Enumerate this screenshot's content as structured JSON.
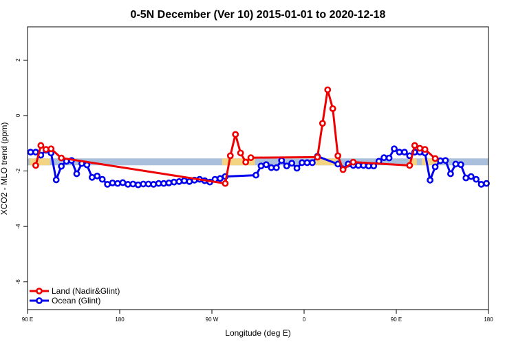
{
  "chart_data": {
    "type": "line",
    "title": "0-5N December (Ver 10)   2015-01-01 to 2020-12-18",
    "xlabel": "Longitude (deg E)",
    "ylabel": "XCO2 - MLO trend (ppm)",
    "xlim": [
      90,
      540
    ],
    "ylim": [
      -7,
      3.2
    ],
    "x_ticks": [
      {
        "value": 90,
        "label": "90 E"
      },
      {
        "value": 180,
        "label": "180"
      },
      {
        "value": 270,
        "label": "90 W"
      },
      {
        "value": 360,
        "label": "0"
      },
      {
        "value": 450,
        "label": "90 E"
      },
      {
        "value": 540,
        "label": "180"
      }
    ],
    "y_ticks": [
      {
        "value": 2,
        "label": "2"
      },
      {
        "value": 0,
        "label": "0"
      },
      {
        "value": -2,
        "label": "-2"
      },
      {
        "value": -4,
        "label": "-4"
      },
      {
        "value": -6,
        "label": "-6"
      }
    ],
    "reference_band": {
      "y": -1.67,
      "color": "#a9bfdc",
      "highlight_color": "#f3d483"
    },
    "highlight_ranges": [
      [
        92,
        112
      ],
      [
        280,
        312
      ],
      [
        370,
        392
      ],
      [
        462,
        470
      ],
      [
        475,
        490
      ]
    ],
    "series": [
      {
        "name": "Land (Nadir&Glint)",
        "color": "#ee0000",
        "points": [
          [
            98,
            -1.8
          ],
          [
            103,
            -1.08
          ],
          [
            108,
            -1.22
          ],
          [
            113,
            -1.2
          ],
          [
            123,
            -1.53
          ],
          [
            283,
            -2.45
          ],
          [
            288,
            -1.45
          ],
          [
            293,
            -0.68
          ],
          [
            298,
            -1.35
          ],
          [
            303,
            -1.68
          ],
          [
            308,
            -1.52
          ],
          [
            373,
            -1.5
          ],
          [
            378,
            -0.28
          ],
          [
            383,
            0.93
          ],
          [
            388,
            0.25
          ],
          [
            393,
            -1.45
          ],
          [
            398,
            -1.95
          ],
          [
            408,
            -1.68
          ],
          [
            463,
            -1.8
          ],
          [
            468,
            -1.08
          ],
          [
            473,
            -1.18
          ],
          [
            478,
            -1.22
          ],
          [
            488,
            -1.55
          ]
        ]
      },
      {
        "name": "Ocean (Glint)",
        "color": "#0000ee",
        "points": [
          [
            93,
            -1.32
          ],
          [
            98,
            -1.32
          ],
          [
            103,
            -1.43
          ],
          [
            108,
            -1.25
          ],
          [
            113,
            -1.35
          ],
          [
            118,
            -2.32
          ],
          [
            123,
            -1.83
          ],
          [
            128,
            -1.65
          ],
          [
            133,
            -1.62
          ],
          [
            138,
            -2.1
          ],
          [
            143,
            -1.73
          ],
          [
            148,
            -1.78
          ],
          [
            153,
            -2.23
          ],
          [
            158,
            -2.18
          ],
          [
            163,
            -2.3
          ],
          [
            168,
            -2.48
          ],
          [
            173,
            -2.43
          ],
          [
            178,
            -2.45
          ],
          [
            183,
            -2.42
          ],
          [
            188,
            -2.48
          ],
          [
            193,
            -2.47
          ],
          [
            198,
            -2.5
          ],
          [
            203,
            -2.47
          ],
          [
            208,
            -2.47
          ],
          [
            213,
            -2.48
          ],
          [
            218,
            -2.45
          ],
          [
            223,
            -2.45
          ],
          [
            228,
            -2.43
          ],
          [
            233,
            -2.4
          ],
          [
            238,
            -2.38
          ],
          [
            243,
            -2.35
          ],
          [
            248,
            -2.38
          ],
          [
            253,
            -2.33
          ],
          [
            258,
            -2.3
          ],
          [
            263,
            -2.35
          ],
          [
            268,
            -2.4
          ],
          [
            273,
            -2.3
          ],
          [
            278,
            -2.27
          ],
          [
            283,
            -2.2
          ],
          [
            313,
            -2.15
          ],
          [
            318,
            -1.82
          ],
          [
            323,
            -1.77
          ],
          [
            328,
            -1.88
          ],
          [
            333,
            -1.88
          ],
          [
            338,
            -1.62
          ],
          [
            343,
            -1.82
          ],
          [
            348,
            -1.72
          ],
          [
            353,
            -1.9
          ],
          [
            358,
            -1.7
          ],
          [
            363,
            -1.7
          ],
          [
            368,
            -1.7
          ],
          [
            373,
            -1.47
          ],
          [
            393,
            -1.75
          ],
          [
            398,
            -1.92
          ],
          [
            403,
            -1.75
          ],
          [
            408,
            -1.8
          ],
          [
            413,
            -1.8
          ],
          [
            418,
            -1.8
          ],
          [
            423,
            -1.82
          ],
          [
            428,
            -1.82
          ],
          [
            433,
            -1.65
          ],
          [
            438,
            -1.52
          ],
          [
            443,
            -1.53
          ],
          [
            448,
            -1.2
          ],
          [
            453,
            -1.32
          ],
          [
            458,
            -1.32
          ],
          [
            463,
            -1.45
          ],
          [
            468,
            -1.32
          ],
          [
            473,
            -1.32
          ],
          [
            478,
            -1.35
          ],
          [
            483,
            -2.33
          ],
          [
            488,
            -1.85
          ],
          [
            493,
            -1.63
          ],
          [
            498,
            -1.62
          ],
          [
            503,
            -2.1
          ],
          [
            508,
            -1.75
          ],
          [
            513,
            -1.77
          ],
          [
            518,
            -2.25
          ],
          [
            523,
            -2.2
          ],
          [
            528,
            -2.3
          ],
          [
            533,
            -2.48
          ],
          [
            538,
            -2.45
          ]
        ]
      }
    ],
    "legend": {
      "position": "bottom-left",
      "entries": [
        {
          "label": "Land (Nadir&Glint)",
          "color": "#ee0000"
        },
        {
          "label": "Ocean (Glint)",
          "color": "#0000ee"
        }
      ]
    }
  }
}
